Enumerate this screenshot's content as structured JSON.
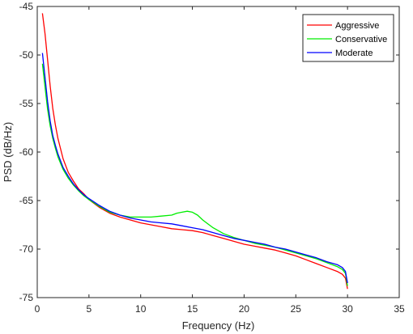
{
  "chart_data": {
    "type": "line",
    "title": "",
    "xlabel": "Frequency (Hz)",
    "ylabel": "PSD (dB/Hz)",
    "xlim": [
      0,
      35
    ],
    "ylim": [
      -75,
      -45
    ],
    "xticks": [
      0,
      5,
      10,
      15,
      20,
      25,
      30,
      35
    ],
    "yticks": [
      -45,
      -50,
      -55,
      -60,
      -65,
      -70,
      -75
    ],
    "grid": false,
    "box": true,
    "legend_position": "top-right",
    "series": [
      {
        "name": "Aggressive",
        "color": "#ff0000",
        "x": [
          0.5,
          0.75,
          1,
          1.25,
          1.5,
          1.75,
          2,
          2.5,
          3,
          3.5,
          4,
          4.5,
          5,
          6,
          7,
          8,
          9,
          10,
          11,
          12,
          13,
          14,
          15,
          16,
          17,
          18,
          19,
          20,
          21,
          22,
          23,
          24,
          25,
          26,
          27,
          28,
          29,
          29.5,
          29.8,
          30
        ],
        "y": [
          -45.7,
          -47.8,
          -50.5,
          -53.2,
          -55.5,
          -57.2,
          -58.6,
          -60.7,
          -62.1,
          -63.0,
          -63.8,
          -64.3,
          -64.9,
          -65.7,
          -66.3,
          -66.7,
          -67.0,
          -67.3,
          -67.5,
          -67.7,
          -67.9,
          -68.0,
          -68.1,
          -68.3,
          -68.6,
          -68.9,
          -69.2,
          -69.5,
          -69.7,
          -69.9,
          -70.1,
          -70.4,
          -70.7,
          -71.1,
          -71.5,
          -71.9,
          -72.3,
          -72.6,
          -73.0,
          -74.1
        ]
      },
      {
        "name": "Conservative",
        "color": "#00ee00",
        "x": [
          0.5,
          0.75,
          1,
          1.25,
          1.5,
          1.75,
          2,
          2.5,
          3,
          3.5,
          4,
          4.5,
          5,
          6,
          7,
          8,
          9,
          10,
          11,
          12,
          13,
          13.5,
          14,
          14.5,
          15,
          15.5,
          16,
          17,
          18,
          19,
          20,
          21,
          22,
          23,
          24,
          25,
          26,
          27,
          28,
          29,
          29.5,
          29.8,
          30
        ],
        "y": [
          -50.9,
          -53.3,
          -55.6,
          -57.3,
          -58.6,
          -59.6,
          -60.5,
          -61.8,
          -62.7,
          -63.4,
          -64.0,
          -64.5,
          -64.9,
          -65.6,
          -66.2,
          -66.5,
          -66.7,
          -66.7,
          -66.7,
          -66.6,
          -66.5,
          -66.3,
          -66.2,
          -66.1,
          -66.2,
          -66.5,
          -67.0,
          -67.8,
          -68.4,
          -68.8,
          -69.1,
          -69.4,
          -69.6,
          -69.8,
          -70.1,
          -70.4,
          -70.7,
          -71.0,
          -71.4,
          -71.8,
          -72.1,
          -72.5,
          -73.8
        ]
      },
      {
        "name": "Moderate",
        "color": "#0000ff",
        "x": [
          0.5,
          0.75,
          1,
          1.25,
          1.5,
          1.75,
          2,
          2.5,
          3,
          3.5,
          4,
          4.5,
          5,
          6,
          7,
          8,
          9,
          10,
          11,
          12,
          13,
          14,
          15,
          16,
          17,
          18,
          19,
          20,
          21,
          22,
          23,
          24,
          25,
          26,
          27,
          28,
          29,
          29.5,
          29.8,
          30
        ],
        "y": [
          -49.8,
          -52.3,
          -54.8,
          -56.8,
          -58.3,
          -59.3,
          -60.2,
          -61.6,
          -62.5,
          -63.3,
          -63.9,
          -64.4,
          -64.8,
          -65.5,
          -66.1,
          -66.5,
          -66.8,
          -67.0,
          -67.2,
          -67.3,
          -67.4,
          -67.6,
          -67.8,
          -68.0,
          -68.3,
          -68.6,
          -68.9,
          -69.1,
          -69.3,
          -69.5,
          -69.8,
          -70.0,
          -70.3,
          -70.6,
          -70.9,
          -71.3,
          -71.6,
          -71.9,
          -72.3,
          -73.5
        ]
      }
    ]
  }
}
